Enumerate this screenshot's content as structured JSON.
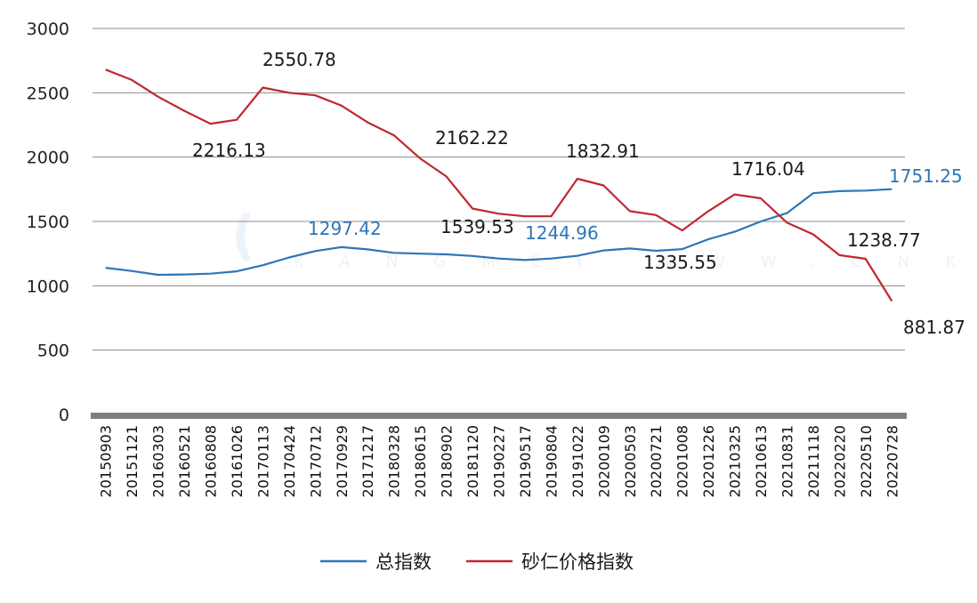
{
  "chart_data": {
    "type": "line",
    "title": "",
    "xlabel": "",
    "ylabel": "",
    "ylim": [
      0,
      3000
    ],
    "yticks": [
      0,
      500,
      1000,
      1500,
      2000,
      2500,
      3000
    ],
    "grid": true,
    "legend_position": "bottom",
    "x_tick_labels": [
      "20150903",
      "20151121",
      "20160303",
      "20160521",
      "20160808",
      "20161026",
      "20170113",
      "20170424",
      "20170712",
      "20170929",
      "20171217",
      "20180328",
      "20180615",
      "20180902",
      "20181120",
      "20190227",
      "20190517",
      "20190804",
      "20191022",
      "20200109",
      "20200503",
      "20200721",
      "20201008",
      "20201226",
      "20210325",
      "20210613",
      "20210831",
      "20211118",
      "20220220",
      "20220510",
      "20220728"
    ],
    "series": [
      {
        "name": "总指数",
        "color": "#2e75b6",
        "values": [
          1140,
          1115,
          1085,
          1088,
          1094,
          1112,
          1160,
          1220,
          1270,
          1300,
          1283,
          1256,
          1250,
          1244,
          1232,
          1212,
          1200,
          1212,
          1233,
          1275,
          1290,
          1272,
          1285,
          1362,
          1420,
          1500,
          1565,
          1720,
          1736,
          1740,
          1751
        ]
      },
      {
        "name": "砂仁价格指数",
        "color": "#c0282e",
        "values": [
          2680,
          2600,
          2470,
          2360,
          2260,
          2290,
          2540,
          2500,
          2480,
          2400,
          2270,
          2170,
          1990,
          1850,
          1600,
          1560,
          1540,
          1540,
          1832,
          1780,
          1580,
          1550,
          1430,
          1580,
          1710,
          1680,
          1490,
          1400,
          1238,
          1210,
          881
        ]
      }
    ],
    "annotations": [
      {
        "text": "2550.78",
        "series": "砂仁价格指数"
      },
      {
        "text": "2216.13",
        "series": "砂仁价格指数"
      },
      {
        "text": "2162.22",
        "series": "砂仁价格指数"
      },
      {
        "text": "1832.91",
        "series": "砂仁价格指数"
      },
      {
        "text": "1716.04",
        "series": "砂仁价格指数"
      },
      {
        "text": "1539.53",
        "series": "砂仁价格指数"
      },
      {
        "text": "1335.55",
        "series": "砂仁价格指数"
      },
      {
        "text": "1238.77",
        "series": "砂仁价格指数"
      },
      {
        "text": "881.87",
        "series": "砂仁价格指数"
      },
      {
        "text": "1297.42",
        "series": "总指数"
      },
      {
        "text": "1244.96",
        "series": "总指数"
      },
      {
        "text": "1751.25",
        "series": "总指数"
      }
    ]
  }
}
